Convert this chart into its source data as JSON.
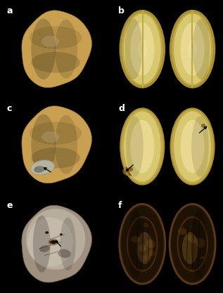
{
  "background_color": "#000000",
  "label_color": "#ffffff",
  "labels": [
    "a",
    "b",
    "c",
    "d",
    "e",
    "f"
  ],
  "label_fontsize": 9,
  "label_fontweight": "bold",
  "figsize": [
    3.17,
    4.17
  ],
  "dpi": 100,
  "panel_colors": {
    "potato_a": "#c8a050",
    "potato_a_dark": "#a07830",
    "potato_a_light": "#e0c070",
    "slice_b_outer": "#c8b060",
    "slice_b_inner": "#dcc878",
    "slice_b_core": "#e8d890",
    "potato_c": "#c8a050",
    "disease_c_gray": "#b0b0a0",
    "disease_c_dark": "#707068",
    "slice_d_outer": "#c8b060",
    "slice_d_inner": "#dcc878",
    "disease_d_brown": "#806020",
    "potato_e_base": "#a09880",
    "potato_e_silver": "#c8c0b0",
    "potato_e_dark": "#706858",
    "slice_f_outer": "#3a2808",
    "slice_f_mid": "#5a3810",
    "slice_f_light": "#c0a050",
    "slice_f_dark": "#1a1005"
  }
}
